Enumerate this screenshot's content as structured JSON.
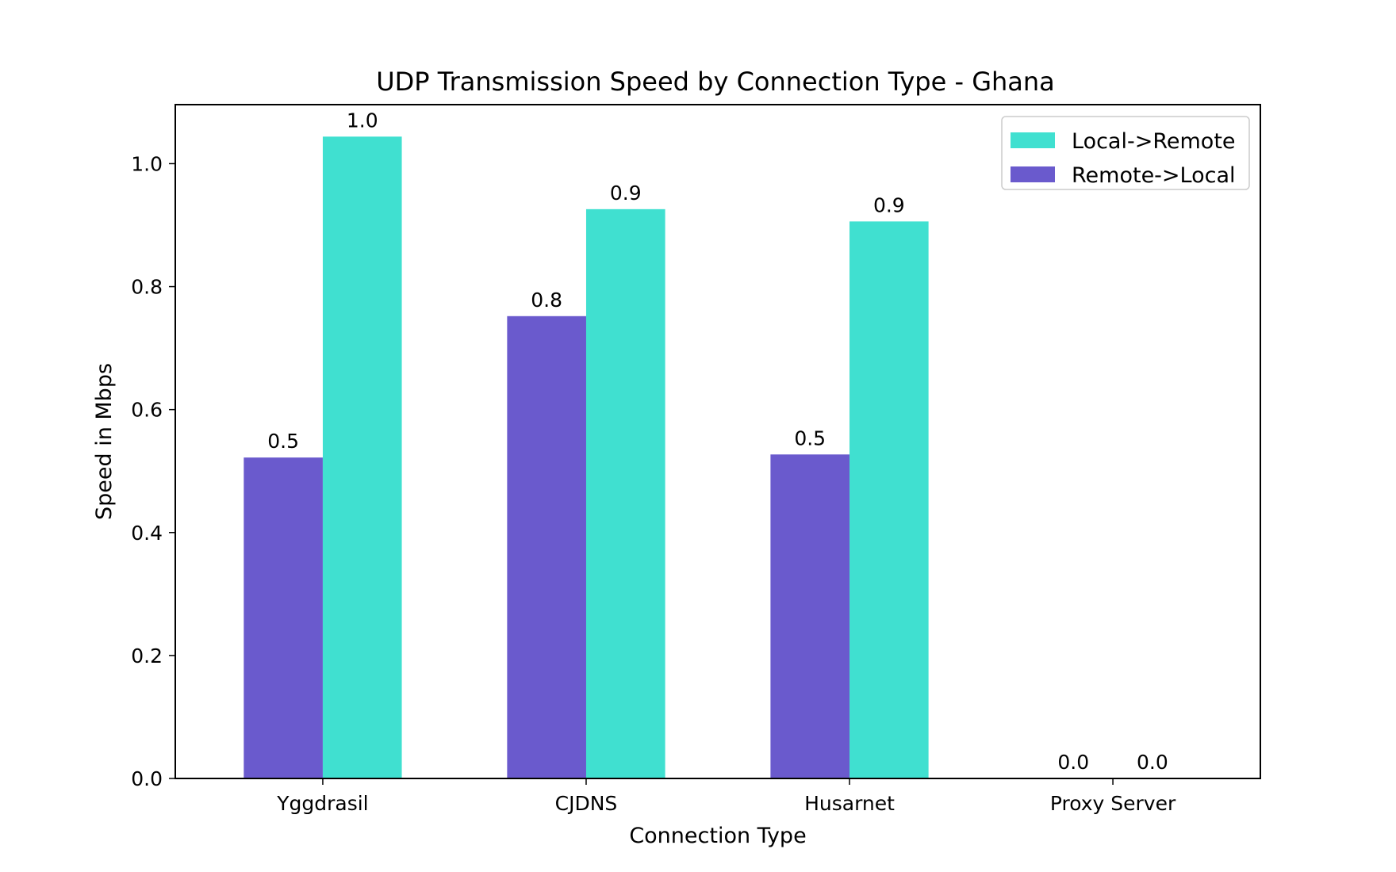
{
  "chart_data": {
    "type": "bar",
    "title": "UDP Transmission Speed by Connection Type - Ghana",
    "xlabel": "Connection Type",
    "ylabel": "Speed in Mbps",
    "categories": [
      "Yggdrasil",
      "CJDNS",
      "Husarnet",
      "Proxy Server"
    ],
    "series": [
      {
        "name": "Remote->Local",
        "color": "#6a5acd",
        "values": [
          0.522,
          0.752,
          0.527,
          0.0
        ],
        "labels": [
          "0.5",
          "0.8",
          "0.5",
          "0.0"
        ]
      },
      {
        "name": "Local->Remote",
        "color": "#40e0d0",
        "values": [
          1.044,
          0.926,
          0.906,
          0.0
        ],
        "labels": [
          "1.0",
          "0.9",
          "0.9",
          "0.0"
        ]
      }
    ],
    "ylim": [
      0,
      1.096
    ],
    "yticks": [
      "0.0",
      "0.2",
      "0.4",
      "0.6",
      "0.8",
      "1.0"
    ],
    "grid": false,
    "legend": {
      "position": "top-right",
      "entries": [
        "Local->Remote",
        "Remote->Local"
      ]
    }
  }
}
